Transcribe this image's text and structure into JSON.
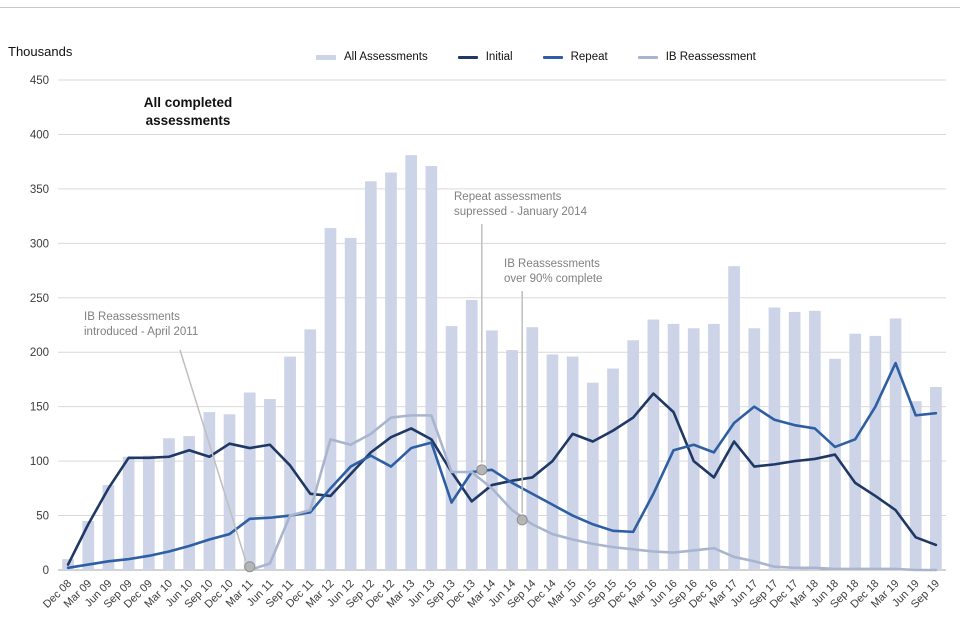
{
  "chart_data": {
    "type": "combo-bar-line",
    "title": "",
    "y_axis_title": "Thousands",
    "ylim": [
      0,
      450
    ],
    "y_ticks": [
      0,
      50,
      100,
      150,
      200,
      250,
      300,
      350,
      400,
      450
    ],
    "grid": "horizontal",
    "legend_position": "top",
    "categories": [
      "Dec 08",
      "Mar 09",
      "Jun 09",
      "Sep 09",
      "Dec 09",
      "Mar 10",
      "Jun 10",
      "Sep 10",
      "Dec 10",
      "Mar 11",
      "Jun 11",
      "Sep 11",
      "Dec 11",
      "Mar 12",
      "Jun 12",
      "Sep 12",
      "Dec 12",
      "Mar 13",
      "Jun 13",
      "Sep 13",
      "Dec 13",
      "Mar 14",
      "Jun 14",
      "Sep 14",
      "Dec 14",
      "Mar 15",
      "Jun 15",
      "Sep 15",
      "Dec 15",
      "Mar 16",
      "Jun 16",
      "Sep 16",
      "Dec 16",
      "Mar 17",
      "Jun 17",
      "Sep 17",
      "Dec 17",
      "Mar 18",
      "Jun 18",
      "Sep 18",
      "Dec 18",
      "Mar 19",
      "Jun 19",
      "Sep 19"
    ],
    "bar_series": {
      "name": "All Assessments",
      "color": "#cdd4e8",
      "values": [
        10,
        45,
        78,
        104,
        105,
        121,
        123,
        145,
        143,
        163,
        157,
        196,
        221,
        314,
        305,
        357,
        365,
        381,
        371,
        224,
        248,
        220,
        202,
        223,
        198,
        196,
        172,
        185,
        211,
        230,
        226,
        222,
        226,
        279,
        222,
        241,
        237,
        238,
        194,
        217,
        215,
        231,
        155,
        168
      ]
    },
    "line_series": [
      {
        "name": "Initial",
        "color": "#1f3864",
        "values": [
          5,
          42,
          75,
          103,
          103,
          104,
          110,
          104,
          116,
          112,
          115,
          96,
          70,
          68,
          88,
          108,
          122,
          130,
          120,
          90,
          63,
          78,
          82,
          85,
          100,
          125,
          118,
          128,
          140,
          162,
          145,
          100,
          85,
          118,
          95,
          97,
          100,
          102,
          106,
          80,
          68,
          55,
          30,
          23
        ]
      },
      {
        "name": "Repeat",
        "color": "#2e5fa3",
        "values": [
          2,
          5,
          8,
          10,
          13,
          17,
          22,
          28,
          33,
          47,
          48,
          50,
          53,
          75,
          95,
          105,
          95,
          112,
          117,
          62,
          90,
          92,
          80,
          70,
          60,
          50,
          42,
          36,
          35,
          70,
          110,
          115,
          108,
          135,
          150,
          138,
          133,
          130,
          113,
          120,
          150,
          190,
          142,
          144
        ]
      },
      {
        "name": "IB Reassessment",
        "color": "#a9b5ce",
        "values": [
          null,
          null,
          null,
          null,
          null,
          null,
          null,
          null,
          null,
          0,
          6,
          50,
          55,
          120,
          115,
          125,
          140,
          142,
          142,
          90,
          90,
          75,
          55,
          42,
          33,
          28,
          24,
          21,
          19,
          17,
          16,
          18,
          20,
          12,
          8,
          3,
          2,
          2,
          1,
          1,
          1,
          1,
          0,
          0
        ]
      }
    ],
    "annotations": [
      {
        "id": "all-completed",
        "text": "All completed assessments"
      },
      {
        "id": "ib-introduced",
        "text": "IB Reassessments\nintroduced - April 2011",
        "x_index": 9,
        "value": 3
      },
      {
        "id": "repeat-suppressed",
        "text": "Repeat assessments\nsupressed - January 2014",
        "x_index": 20.5,
        "value": 92
      },
      {
        "id": "ib-complete",
        "text": "IB Reassessments\nover 90% complete",
        "x_index": 22.5,
        "value": 46
      }
    ],
    "colors": {
      "background": "#ffffff",
      "grid": "#d9d9d9",
      "zero_axis": "#a6a6a6",
      "axis_text": "#3c3c3c",
      "annotation_text": "#808080",
      "callout_line": "#bfbfbf",
      "dot_fill": "#b5b5b5",
      "dot_stroke": "#8f8f8f"
    }
  }
}
